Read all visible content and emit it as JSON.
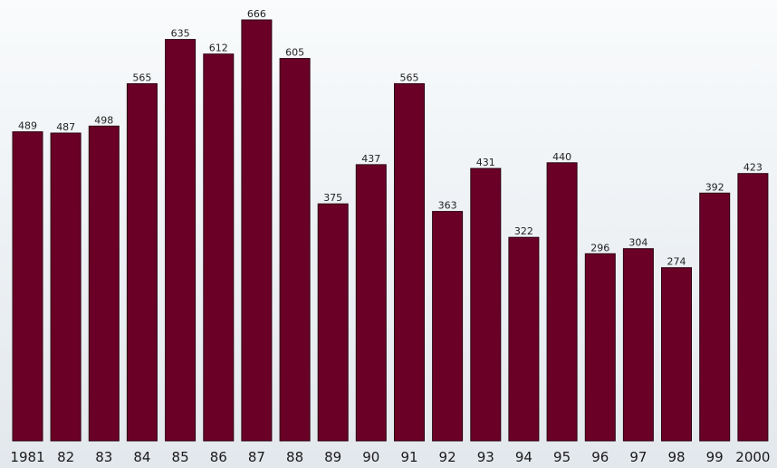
{
  "chart_data": {
    "type": "bar",
    "categories": [
      "1981",
      "82",
      "83",
      "84",
      "85",
      "86",
      "87",
      "88",
      "89",
      "90",
      "91",
      "92",
      "93",
      "94",
      "95",
      "96",
      "97",
      "98",
      "99",
      "2000"
    ],
    "values": [
      489,
      487,
      498,
      565,
      635,
      612,
      666,
      605,
      375,
      437,
      565,
      363,
      431,
      322,
      440,
      296,
      304,
      274,
      392,
      423
    ],
    "title": "",
    "xlabel": "",
    "ylabel": "",
    "ylim": [
      0,
      666
    ],
    "grid": false,
    "legend": "none",
    "bar_color": "#6b0026",
    "bar_edge_color": "#2b0010"
  }
}
